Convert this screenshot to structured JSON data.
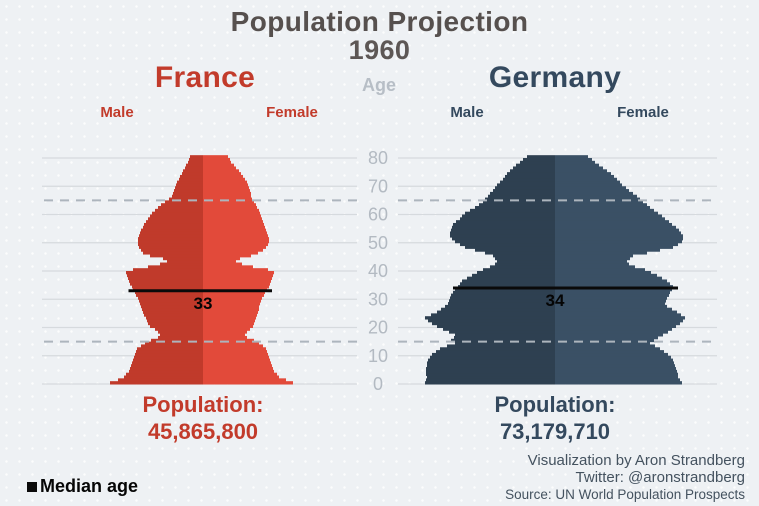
{
  "page": {
    "background": "#eef1f4"
  },
  "header": {
    "title": "Population Projection",
    "year": "1960",
    "age_axis_label": "Age"
  },
  "countries": [
    {
      "name": "France",
      "male_label": "Male",
      "female_label": "Female",
      "population_label": "Population:",
      "population_value": "45,865,800",
      "median_age": "33",
      "colors": {
        "male_bar": "#c03a2b",
        "female_bar": "#e24a3a",
        "text": "#c23b2b"
      }
    },
    {
      "name": "Germany",
      "male_label": "Male",
      "female_label": "Female",
      "population_label": "Population:",
      "population_value": "73,179,710",
      "median_age": "34",
      "colors": {
        "male_bar": "#2e4051",
        "female_bar": "#3a5065",
        "text": "#34495e"
      }
    }
  ],
  "legend": {
    "median_age_label": "Median age",
    "swatch_color": "#000000"
  },
  "attribution": {
    "line1": "Visualization by Aron Strandberg",
    "line2": "Twitter: @aronstrandberg",
    "line3": "Source: UN World Population Prospects"
  },
  "chart_data": {
    "type": "population-pyramid",
    "title": "Population Projection 1960",
    "age_axis": {
      "min": 0,
      "max": 80,
      "ticks": [
        0,
        10,
        20,
        30,
        40,
        50,
        60,
        70,
        80
      ],
      "dashed_reference_ages": [
        15,
        65
      ]
    },
    "units": "relative cohort size per 1-year age group (estimated from bar half-widths)",
    "grid": {
      "solid_at_ticks": true,
      "tick_label_color": "#b3bac2",
      "solid_color": "#d6dade",
      "dashed_color": "#adb5bd",
      "median_line_color": "#0a0a0a"
    },
    "series": [
      {
        "name": "France",
        "median_age": 33,
        "total_population": "45,865,800",
        "points_age_male_female": [
          [
            0,
            93,
            90
          ],
          [
            1,
            85,
            83
          ],
          [
            2,
            79,
            76
          ],
          [
            4,
            74,
            71
          ],
          [
            6,
            72,
            69
          ],
          [
            8,
            70,
            67
          ],
          [
            10,
            68,
            65
          ],
          [
            12,
            66,
            63
          ],
          [
            14,
            58,
            56
          ],
          [
            15,
            52,
            51
          ],
          [
            16,
            45,
            44
          ],
          [
            17,
            43,
            42
          ],
          [
            18,
            45,
            44
          ],
          [
            19,
            48,
            47
          ],
          [
            20,
            53,
            50
          ],
          [
            22,
            56,
            52
          ],
          [
            25,
            60,
            55
          ],
          [
            28,
            63,
            57
          ],
          [
            30,
            65,
            59
          ],
          [
            32,
            68,
            62
          ],
          [
            34,
            71,
            66
          ],
          [
            36,
            74,
            68
          ],
          [
            38,
            76,
            70
          ],
          [
            39,
            77,
            71
          ],
          [
            40,
            70,
            65
          ],
          [
            41,
            55,
            50
          ],
          [
            42,
            43,
            39
          ],
          [
            43,
            36,
            33
          ],
          [
            44,
            40,
            37
          ],
          [
            45,
            53,
            48
          ],
          [
            46,
            60,
            55
          ],
          [
            47,
            62,
            60
          ],
          [
            49,
            65,
            65
          ],
          [
            51,
            65,
            66
          ],
          [
            53,
            63,
            64
          ],
          [
            55,
            60,
            62
          ],
          [
            57,
            57,
            60
          ],
          [
            59,
            53,
            58
          ],
          [
            60,
            51,
            57
          ],
          [
            62,
            45,
            54
          ],
          [
            64,
            38,
            51
          ],
          [
            65,
            34,
            49
          ],
          [
            66,
            31,
            48
          ],
          [
            68,
            29,
            47
          ],
          [
            70,
            27,
            45
          ],
          [
            72,
            24,
            42
          ],
          [
            74,
            21,
            38
          ],
          [
            76,
            18,
            33
          ],
          [
            78,
            15,
            28
          ],
          [
            80,
            13,
            25
          ]
        ]
      },
      {
        "name": "Germany",
        "median_age": 34,
        "total_population": "73,179,710",
        "points_age_male_female": [
          [
            0,
            130,
            127
          ],
          [
            2,
            128,
            123
          ],
          [
            4,
            129,
            122
          ],
          [
            6,
            128,
            120
          ],
          [
            8,
            127,
            118
          ],
          [
            10,
            123,
            113
          ],
          [
            12,
            115,
            105
          ],
          [
            13,
            108,
            100
          ],
          [
            14,
            100,
            95
          ],
          [
            15,
            104,
            99
          ],
          [
            16,
            101,
            103
          ],
          [
            17,
            100,
            108
          ],
          [
            19,
            112,
            117
          ],
          [
            21,
            123,
            125
          ],
          [
            23,
            130,
            130
          ],
          [
            25,
            118,
            122
          ],
          [
            27,
            110,
            112
          ],
          [
            28,
            107,
            110
          ],
          [
            30,
            105,
            112
          ],
          [
            32,
            102,
            115
          ],
          [
            34,
            97,
            118
          ],
          [
            36,
            93,
            112
          ],
          [
            38,
            83,
            102
          ],
          [
            40,
            72,
            90
          ],
          [
            41,
            65,
            80
          ],
          [
            42,
            60,
            74
          ],
          [
            43,
            58,
            72
          ],
          [
            44,
            60,
            75
          ],
          [
            45,
            62,
            78
          ],
          [
            46,
            70,
            92
          ],
          [
            48,
            90,
            118
          ],
          [
            50,
            100,
            127
          ],
          [
            52,
            105,
            128
          ],
          [
            54,
            104,
            124
          ],
          [
            56,
            102,
            117
          ],
          [
            58,
            95,
            110
          ],
          [
            60,
            90,
            103
          ],
          [
            62,
            80,
            95
          ],
          [
            64,
            72,
            88
          ],
          [
            65,
            70,
            85
          ],
          [
            66,
            67,
            82
          ],
          [
            68,
            62,
            74
          ],
          [
            70,
            58,
            67
          ],
          [
            72,
            52,
            62
          ],
          [
            74,
            48,
            56
          ],
          [
            76,
            42,
            48
          ],
          [
            78,
            35,
            40
          ],
          [
            80,
            28,
            33
          ]
        ]
      }
    ]
  }
}
